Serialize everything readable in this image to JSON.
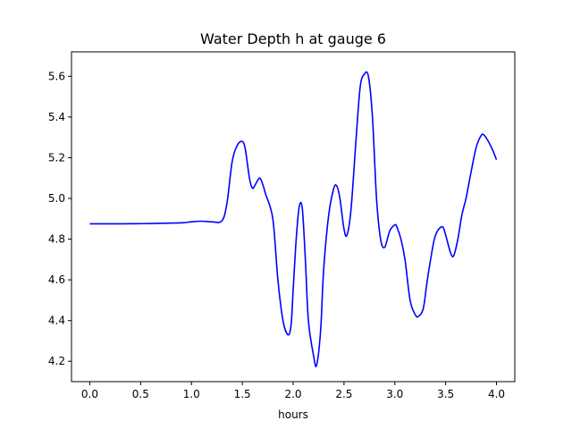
{
  "chart_data": {
    "type": "line",
    "title": "Water Depth h at gauge 6",
    "xlabel": "hours",
    "ylabel": "",
    "xlim": [
      -0.18,
      4.18
    ],
    "ylim": [
      4.1,
      5.72
    ],
    "xticks": [
      0.0,
      0.5,
      1.0,
      1.5,
      2.0,
      2.5,
      3.0,
      3.5,
      4.0
    ],
    "xtick_labels": [
      "0.0",
      "0.5",
      "1.0",
      "1.5",
      "2.0",
      "2.5",
      "3.0",
      "3.5",
      "4.0"
    ],
    "yticks": [
      4.2,
      4.4,
      4.6,
      4.8,
      5.0,
      5.2,
      5.4,
      5.6
    ],
    "ytick_labels": [
      "4.2",
      "4.4",
      "4.6",
      "4.8",
      "5.0",
      "5.2",
      "5.4",
      "5.6"
    ],
    "grid": false,
    "series": [
      {
        "name": "",
        "color": "#0000ff",
        "x": [
          0.0,
          0.3,
          0.5,
          0.7,
          0.9,
          1.0,
          1.1,
          1.2,
          1.3,
          1.35,
          1.4,
          1.45,
          1.5,
          1.53,
          1.57,
          1.6,
          1.63,
          1.67,
          1.7,
          1.73,
          1.8,
          1.85,
          1.9,
          1.95,
          1.98,
          2.0,
          2.03,
          2.06,
          2.09,
          2.12,
          2.15,
          2.2,
          2.23,
          2.27,
          2.3,
          2.35,
          2.4,
          2.43,
          2.46,
          2.5,
          2.53,
          2.57,
          2.62,
          2.66,
          2.7,
          2.74,
          2.78,
          2.82,
          2.86,
          2.9,
          2.95,
          3.0,
          3.02,
          3.06,
          3.1,
          3.15,
          3.2,
          3.23,
          3.28,
          3.32,
          3.38,
          3.42,
          3.47,
          3.5,
          3.55,
          3.58,
          3.62,
          3.66,
          3.7,
          3.75,
          3.8,
          3.85,
          3.88,
          3.92,
          3.96,
          4.0
        ],
        "y": [
          4.875,
          4.875,
          4.876,
          4.878,
          4.88,
          4.885,
          4.888,
          4.885,
          4.89,
          4.98,
          5.18,
          5.26,
          5.28,
          5.24,
          5.1,
          5.05,
          5.07,
          5.1,
          5.07,
          5.02,
          4.9,
          4.6,
          4.4,
          4.33,
          4.38,
          4.55,
          4.8,
          4.96,
          4.95,
          4.7,
          4.4,
          4.23,
          4.18,
          4.35,
          4.65,
          4.92,
          5.05,
          5.06,
          5.0,
          4.85,
          4.82,
          4.95,
          5.3,
          5.55,
          5.61,
          5.6,
          5.4,
          5.0,
          4.8,
          4.76,
          4.84,
          4.87,
          4.86,
          4.8,
          4.7,
          4.5,
          4.43,
          4.42,
          4.46,
          4.6,
          4.78,
          4.84,
          4.86,
          4.82,
          4.73,
          4.72,
          4.8,
          4.92,
          5.0,
          5.13,
          5.25,
          5.31,
          5.31,
          5.28,
          5.24,
          5.19
        ]
      }
    ]
  }
}
